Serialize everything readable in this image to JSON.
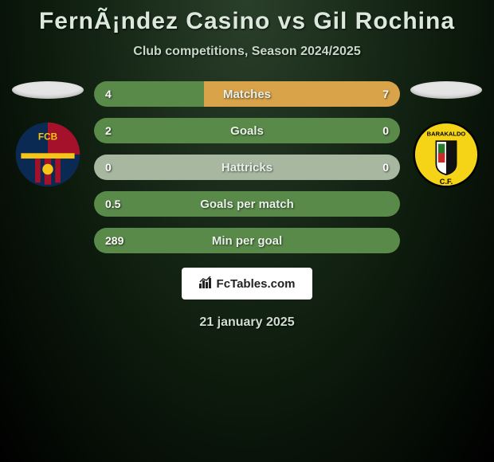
{
  "title": "FernÃ¡ndez Casino vs Gil Rochina",
  "subtitle": "Club competitions, Season 2024/2025",
  "date": "21 january 2025",
  "logo_text": "FcTables.com",
  "colors": {
    "bar_green": "#5a8a4a",
    "bar_orange": "#d9a34a",
    "bar_empty": "#a8b8a0"
  },
  "stats": [
    {
      "label": "Matches",
      "left_val": "4",
      "right_val": "7",
      "left_pct": 36
    },
    {
      "label": "Goals",
      "left_val": "2",
      "right_val": "0",
      "left_pct": 100
    },
    {
      "label": "Hattricks",
      "left_val": "0",
      "right_val": "0",
      "left_pct": 0
    },
    {
      "label": "Goals per match",
      "left_val": "0.5",
      "right_val": "",
      "left_pct": 100
    },
    {
      "label": "Min per goal",
      "left_val": "289",
      "right_val": "",
      "left_pct": 100
    }
  ],
  "stat_bar": {
    "height": 32,
    "radius": 16,
    "label_fontsize": 15,
    "val_fontsize": 14
  }
}
